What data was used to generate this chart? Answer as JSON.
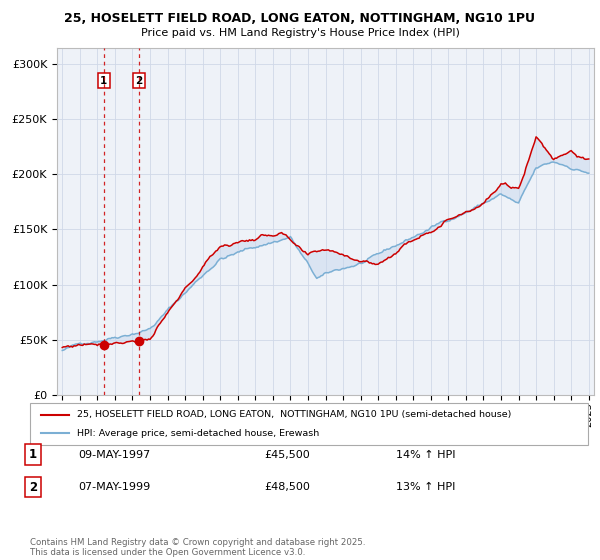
{
  "title1": "25, HOSELETT FIELD ROAD, LONG EATON, NOTTINGHAM, NG10 1PU",
  "title2": "Price paid vs. HM Land Registry's House Price Index (HPI)",
  "ylabel_ticks": [
    "£0",
    "£50K",
    "£100K",
    "£150K",
    "£200K",
    "£250K",
    "£300K"
  ],
  "ytick_values": [
    0,
    50000,
    100000,
    150000,
    200000,
    250000,
    300000
  ],
  "ylim": [
    0,
    315000
  ],
  "legend_line1": "25, HOSELETT FIELD ROAD, LONG EATON,  NOTTINGHAM, NG10 1PU (semi-detached house)",
  "legend_line2": "HPI: Average price, semi-detached house, Erewash",
  "sale1_date": "09-MAY-1997",
  "sale1_price": "£45,500",
  "sale1_hpi": "14% ↑ HPI",
  "sale2_date": "07-MAY-1999",
  "sale2_price": "£48,500",
  "sale2_hpi": "13% ↑ HPI",
  "footer": "Contains HM Land Registry data © Crown copyright and database right 2025.\nThis data is licensed under the Open Government Licence v3.0.",
  "red_color": "#cc0000",
  "blue_color": "#7bafd4",
  "shading_color": "#c8d8ed",
  "background_color": "#eef2f8",
  "grid_color": "#d0d8e8",
  "vline1_x": 1997.37,
  "vline2_x": 1999.37,
  "sale1_price_val": 45500,
  "sale2_price_val": 48500,
  "sale1_year": 1997.37,
  "sale2_year": 1999.37,
  "xlim_left": 1994.7,
  "xlim_right": 2025.3
}
